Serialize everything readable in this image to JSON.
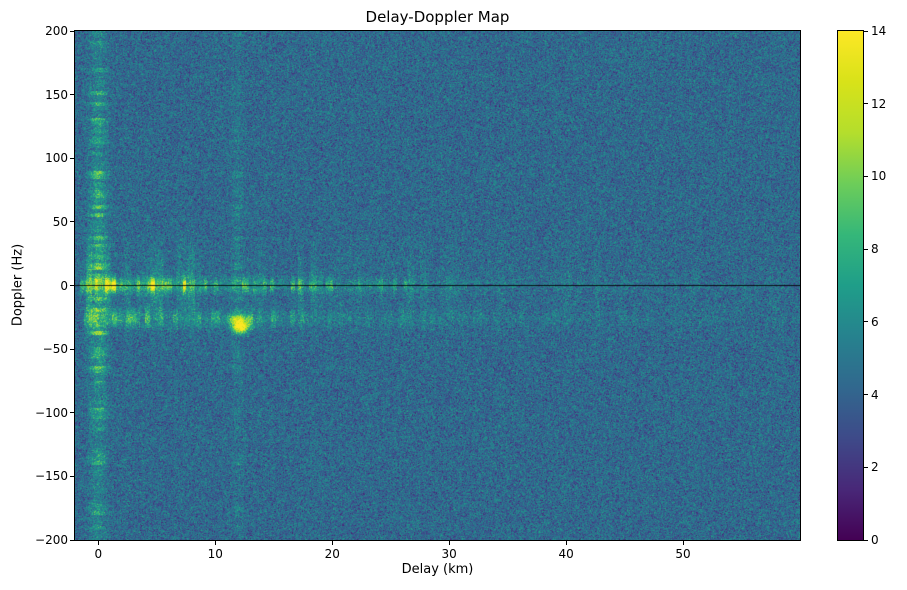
{
  "figure": {
    "title": "Delay-Doppler Map"
  },
  "chart_data": {
    "type": "heatmap",
    "title": "Delay-Doppler Map",
    "xlabel": "Delay (km)",
    "ylabel": "Doppler (Hz)",
    "xlim": [
      -2,
      60
    ],
    "ylim": [
      -200,
      200
    ],
    "xticks": [
      0,
      10,
      20,
      30,
      40,
      50
    ],
    "yticks": [
      -200,
      -150,
      -100,
      -50,
      0,
      50,
      100,
      150,
      200
    ],
    "grid": false,
    "colorbar": {
      "min": 0,
      "max": 14,
      "ticks": [
        0,
        2,
        4,
        6,
        8,
        10,
        12,
        14
      ],
      "position": "right"
    },
    "colormap": {
      "name": "viridis",
      "stops": [
        [
          68,
          1,
          84
        ],
        [
          72,
          40,
          120
        ],
        [
          62,
          74,
          137
        ],
        [
          49,
          104,
          142
        ],
        [
          38,
          130,
          142
        ],
        [
          31,
          158,
          137
        ],
        [
          53,
          183,
          121
        ],
        [
          109,
          205,
          89
        ],
        [
          180,
          222,
          44
        ],
        [
          216,
          226,
          25
        ],
        [
          253,
          231,
          37
        ]
      ]
    },
    "noise": {
      "mean": 4.3,
      "amplitude": 2.4,
      "seed": 42
    },
    "features": [
      {
        "type": "main_band",
        "doppler_center": 0,
        "doppler_sigma": 5.5,
        "amp": 9.5,
        "delay_start": -1.6,
        "delay_decay": 16,
        "comb_bin": 0.3
      },
      {
        "type": "delay_column",
        "delay_center": 0,
        "delay_width": 0.7,
        "amp": 6,
        "doppler_decay": 80,
        "comb_bin": 3
      },
      {
        "type": "delay_column",
        "delay_center": 11.9,
        "delay_width": 0.5,
        "amp": 2.2,
        "doppler_decay": 45,
        "comb_bin": 3
      },
      {
        "type": "side_band",
        "doppler_center": -26,
        "doppler_sigma": 6.5,
        "amp": 4,
        "delay_start": -1.2,
        "delay_decay": 22,
        "comb_bin": 0.4
      },
      {
        "type": "blob",
        "delay": 12.0,
        "doppler": -27,
        "delay_sigma": 0.9,
        "doppler_sigma": 4,
        "amp": 7
      },
      {
        "type": "blob",
        "delay": 12.2,
        "doppler": -33,
        "delay_sigma": 0.7,
        "doppler_sigma": 4,
        "amp": 10
      },
      {
        "type": "striations",
        "delay_start": -1.5,
        "comb_bin": 0.55,
        "amp": 2.6,
        "doppler_sigma": 30,
        "delay_decay": 28
      },
      {
        "type": "zero_doppler_line",
        "doppler": 0,
        "color": "#000000",
        "alpha": 0.85
      }
    ]
  }
}
